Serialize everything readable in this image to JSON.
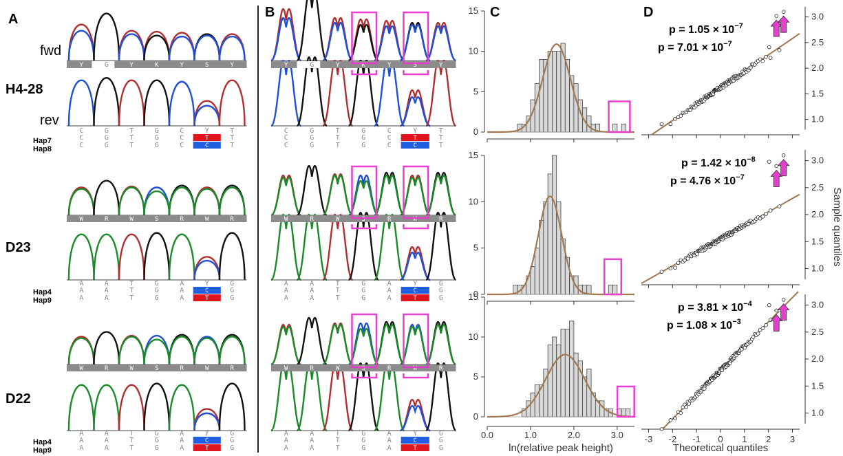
{
  "panels": {
    "A": "A",
    "B": "B",
    "C": "C",
    "D": "D"
  },
  "samples": [
    {
      "name": "H4-28",
      "haps": [
        "Hap7",
        "Hap8"
      ]
    },
    {
      "name": "D23",
      "haps": [
        "Hap4",
        "Hap9"
      ]
    },
    {
      "name": "D22",
      "haps": [
        "Hap4",
        "Hap9"
      ]
    }
  ],
  "strands": {
    "fwd": "fwd",
    "rev": "rev"
  },
  "sequences": [
    {
      "fwd": [
        "Y",
        "G",
        "Y",
        "K",
        "Y",
        "S",
        "Y"
      ],
      "rev": [
        "C",
        "G",
        "T",
        "G",
        "C",
        "Y",
        "T"
      ],
      "hap_a": [
        "C",
        "G",
        "T",
        "G",
        "C",
        "T",
        "T"
      ],
      "hap_b": [
        "C",
        "G",
        "T",
        "G",
        "C",
        "C",
        "T"
      ],
      "hap_a_color": "#e0141c",
      "hap_b_color": "#1f5fe0"
    },
    {
      "fwd": [
        "W",
        "R",
        "W",
        "S",
        "R",
        "W",
        "R"
      ],
      "rev": [
        "A",
        "A",
        "T",
        "G",
        "A",
        "Y",
        "G"
      ],
      "hap_a": [
        "A",
        "A",
        "T",
        "G",
        "A",
        "C",
        "G"
      ],
      "hap_b": [
        "A",
        "A",
        "T",
        "G",
        "A",
        "T",
        "G"
      ],
      "hap_a_color": "#1f5fe0",
      "hap_b_color": "#e0141c"
    },
    {
      "fwd": [
        "W",
        "R",
        "W",
        "S",
        "R",
        "W",
        "R"
      ],
      "rev": [
        "A",
        "A",
        "T",
        "G",
        "A",
        "Y",
        "G"
      ],
      "hap_a": [
        "A",
        "A",
        "T",
        "G",
        "A",
        "C",
        "G"
      ],
      "hap_b": [
        "A",
        "A",
        "T",
        "G",
        "A",
        "T",
        "G"
      ],
      "hap_a_color": "#1f5fe0",
      "hap_b_color": "#e0141c"
    }
  ],
  "colors": {
    "blue": "#1f4fd8",
    "red": "#b22e2e",
    "black": "#111111",
    "green": "#1a8a2a",
    "highlight": "#e83ed0",
    "fit_line": "#a07850",
    "hist_fill": "#d9d9d9"
  },
  "pvalues": [
    [
      "p = 1.05 × 10",
      "−7",
      "p = 7.01 × 10",
      "−7"
    ],
    [
      "p = 1.42 × 10",
      "−8",
      "p = 4.76 × 10",
      "−7"
    ],
    [
      "p = 3.81 × 10",
      "−4",
      "p = 1.08 × 10",
      "−3"
    ]
  ],
  "chart_data": [
    {
      "type": "bar",
      "panel": "C",
      "title": "",
      "xlabel": "ln(relative peak height)",
      "ylabel": "",
      "xlim": [
        0,
        3.4
      ],
      "ylim": [
        0,
        15
      ],
      "x_ticks": [
        "0.0",
        "1.0",
        "2.0",
        "3.0"
      ],
      "y_ticks": [
        "0",
        "5",
        "10",
        "15"
      ],
      "histograms": [
        {
          "bin_width": 0.1,
          "bin_starts": [
            0.7,
            0.8,
            0.9,
            1.0,
            1.1,
            1.2,
            1.3,
            1.4,
            1.5,
            1.6,
            1.7,
            1.8,
            1.9,
            2.0,
            2.1,
            2.2,
            2.3,
            2.4,
            2.5,
            2.9,
            3.1
          ],
          "counts": [
            1,
            1,
            2,
            4,
            6,
            9,
            9,
            10,
            10,
            10,
            11,
            9,
            7,
            6,
            4,
            3,
            2,
            1,
            1,
            1,
            1
          ]
        },
        {
          "bin_width": 0.1,
          "bin_starts": [
            0.6,
            0.7,
            0.8,
            0.9,
            1.0,
            1.1,
            1.2,
            1.3,
            1.4,
            1.5,
            1.6,
            1.7,
            1.8,
            1.9,
            2.0,
            2.1,
            2.2,
            2.3,
            2.8,
            2.9
          ],
          "counts": [
            1,
            1,
            1,
            2,
            3,
            5,
            8,
            10,
            13,
            15,
            10,
            6,
            4,
            2,
            2,
            1,
            1,
            1,
            1,
            1
          ]
        },
        {
          "bin_width": 0.1,
          "bin_starts": [
            0.8,
            0.9,
            1.0,
            1.1,
            1.2,
            1.3,
            1.4,
            1.5,
            1.6,
            1.7,
            1.8,
            1.9,
            2.0,
            2.1,
            2.2,
            2.3,
            2.4,
            2.5,
            2.6,
            2.7,
            2.8,
            3.0,
            3.1,
            3.2
          ],
          "counts": [
            1,
            2,
            3,
            4,
            4,
            6,
            9,
            10,
            9,
            11,
            11,
            12,
            8,
            7,
            5,
            6,
            3,
            2,
            2,
            1,
            1,
            1,
            1,
            1
          ]
        }
      ]
    },
    {
      "type": "scatter",
      "panel": "D",
      "title": "",
      "xlabel": "Theoretical quantiles",
      "ylabel": "Sample quantiles",
      "xlim": [
        -3.3,
        3.3
      ],
      "ylim": [
        0.7,
        3.25
      ],
      "x_ticks": [
        "-3",
        "-2",
        "-1",
        "0",
        "1",
        "2",
        "3"
      ],
      "y_ticks": [
        "1.0",
        "1.5",
        "2.0",
        "2.5",
        "3.0"
      ],
      "series": [
        {
          "fit": {
            "intercept": 1.62,
            "slope": 0.32
          },
          "outliers": [
            [
              2.03,
              2.41
            ],
            [
              2.33,
              3.02
            ],
            [
              2.63,
              3.1
            ]
          ]
        },
        {
          "fit": {
            "intercept": 1.55,
            "slope": 0.25
          },
          "outliers": [
            [
              2.03,
              2.98
            ],
            [
              2.33,
              2.9
            ],
            [
              2.63,
              3.1
            ]
          ]
        },
        {
          "fit": {
            "intercept": 1.79,
            "slope": 0.45
          },
          "outliers": [
            [
              2.03,
              3.0
            ],
            [
              2.33,
              2.9
            ],
            [
              2.63,
              3.1
            ]
          ]
        }
      ]
    }
  ],
  "chromatograms": [
    {
      "fwd": [
        [
          [
            "r",
            0.75
          ],
          [
            "b",
            0.62
          ]
        ],
        [
          [
            "k",
            0.98
          ]
        ],
        [
          [
            "r",
            0.62
          ],
          [
            "b",
            0.55
          ]
        ],
        [
          [
            "r",
            0.6
          ],
          [
            "k",
            0.52
          ]
        ],
        [
          [
            "r",
            0.58
          ],
          [
            "b",
            0.5
          ]
        ],
        [
          [
            "k",
            0.55
          ],
          [
            "b",
            0.52
          ]
        ],
        [
          [
            "r",
            0.55
          ],
          [
            "b",
            0.5
          ]
        ]
      ],
      "rev": [
        [
          [
            "b",
            0.95
          ]
        ],
        [
          [
            "k",
            1.0
          ]
        ],
        [
          [
            "r",
            0.95
          ]
        ],
        [
          [
            "k",
            0.95
          ]
        ],
        [
          [
            "b",
            0.92
          ]
        ],
        [
          [
            "r",
            0.52
          ],
          [
            "b",
            0.42
          ]
        ],
        [
          [
            "r",
            0.95
          ]
        ]
      ]
    },
    {
      "fwd": [
        [
          [
            "r",
            0.58
          ],
          [
            "g",
            0.55
          ]
        ],
        [
          [
            "k",
            0.72
          ]
        ],
        [
          [
            "r",
            0.6
          ],
          [
            "g",
            0.58
          ]
        ],
        [
          [
            "b",
            0.58
          ],
          [
            "g",
            0.5
          ]
        ],
        [
          [
            "k",
            0.62
          ],
          [
            "g",
            0.58
          ]
        ],
        [
          [
            "r",
            0.58
          ],
          [
            "g",
            0.55
          ]
        ],
        [
          [
            "k",
            0.62
          ],
          [
            "g",
            0.58
          ]
        ]
      ],
      "rev": [
        [
          [
            "g",
            0.95
          ]
        ],
        [
          [
            "g",
            0.95
          ]
        ],
        [
          [
            "r",
            0.95
          ]
        ],
        [
          [
            "k",
            0.98
          ]
        ],
        [
          [
            "g",
            0.95
          ]
        ],
        [
          [
            "r",
            0.48
          ],
          [
            "b",
            0.4
          ]
        ],
        [
          [
            "k",
            0.98
          ]
        ]
      ]
    },
    {
      "fwd": [
        [
          [
            "r",
            0.58
          ],
          [
            "g",
            0.55
          ]
        ],
        [
          [
            "k",
            0.68
          ]
        ],
        [
          [
            "r",
            0.6
          ],
          [
            "g",
            0.58
          ]
        ],
        [
          [
            "b",
            0.6
          ],
          [
            "g",
            0.52
          ]
        ],
        [
          [
            "k",
            0.62
          ],
          [
            "g",
            0.58
          ]
        ],
        [
          [
            "b",
            0.58
          ],
          [
            "g",
            0.55
          ]
        ],
        [
          [
            "k",
            0.62
          ],
          [
            "g",
            0.58
          ]
        ]
      ],
      "rev": [
        [
          [
            "g",
            0.95
          ]
        ],
        [
          [
            "g",
            0.95
          ]
        ],
        [
          [
            "r",
            0.95
          ]
        ],
        [
          [
            "k",
            0.98
          ]
        ],
        [
          [
            "g",
            0.95
          ]
        ],
        [
          [
            "r",
            0.45
          ],
          [
            "b",
            0.36
          ]
        ],
        [
          [
            "k",
            0.98
          ]
        ]
      ]
    }
  ]
}
